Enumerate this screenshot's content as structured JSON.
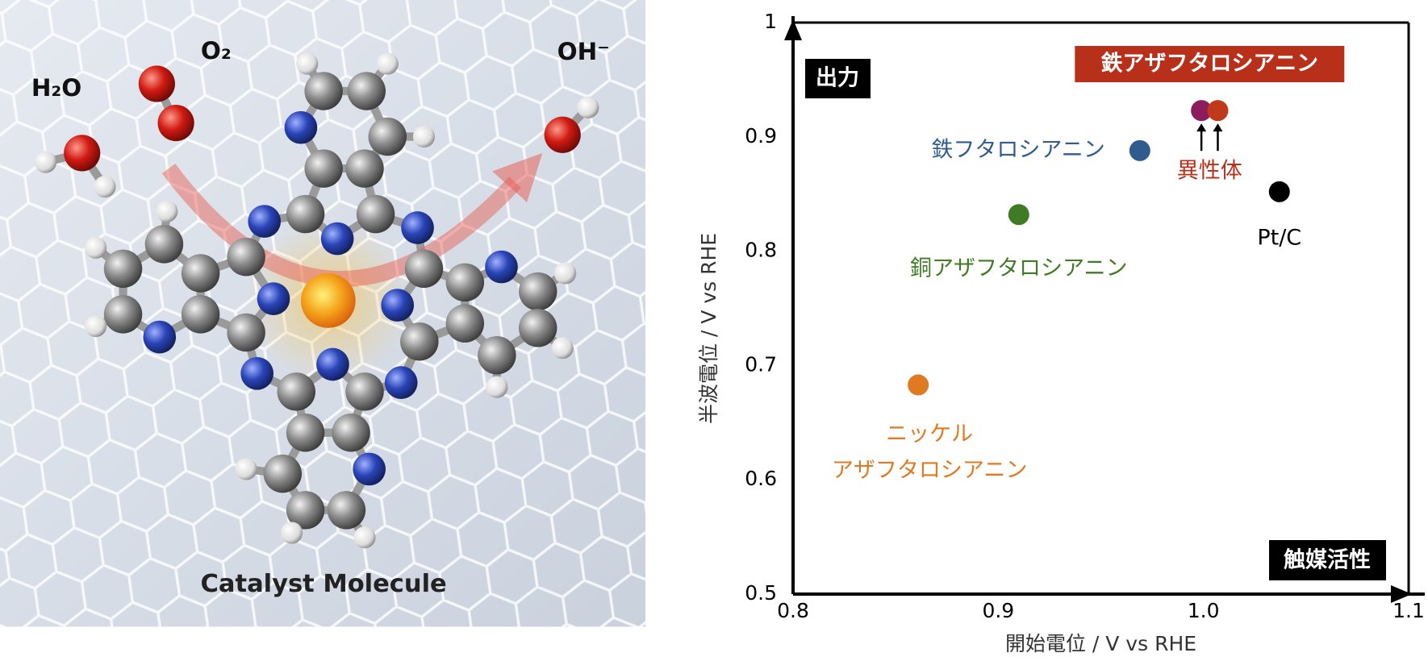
{
  "illustration": {
    "water": "H₂O",
    "oxygen": "O₂",
    "hydroxide": "OH⁻",
    "caption": "Catalyst Molecule"
  },
  "chart_data": {
    "type": "scatter",
    "xlabel": "開始電位 / V vs RHE",
    "ylabel": "半波電位 / V vs RHE",
    "corner_labels": {
      "y_direction": "出力",
      "x_direction": "触媒活性"
    },
    "xlim": [
      0.8,
      1.1
    ],
    "ylim": [
      0.5,
      1
    ],
    "xticks": [
      0.8,
      0.9,
      {
        "value": 1,
        "label": "1.0"
      },
      1.1
    ],
    "yticks": [
      0.5,
      0.6,
      0.7,
      0.8,
      0.9,
      1
    ],
    "series": [
      {
        "name": "鉄フタロシアニン",
        "color": "#2f5b8f",
        "x": [
          0.969
        ],
        "values": [
          0.888
        ]
      },
      {
        "name": "銅アザフタロシアニン",
        "color": "#3f7b24",
        "x": [
          0.91
        ],
        "values": [
          0.832
        ]
      },
      {
        "name": [
          "ニッケル",
          "アザフタロシアニン"
        ],
        "color": "#e07a22",
        "x": [
          0.861
        ],
        "values": [
          0.683
        ]
      },
      {
        "name": "Pt/C",
        "color": "#000000",
        "x": [
          1.037
        ],
        "values": [
          0.852
        ]
      },
      {
        "name": "鉄アザフタロシアニン",
        "label": "異性体",
        "color": "#b8301a",
        "colors": [
          "#8c1d5c",
          "#c0391b"
        ],
        "x": [
          0.999,
          1.007
        ],
        "values": [
          0.923,
          0.923
        ]
      }
    ]
  }
}
